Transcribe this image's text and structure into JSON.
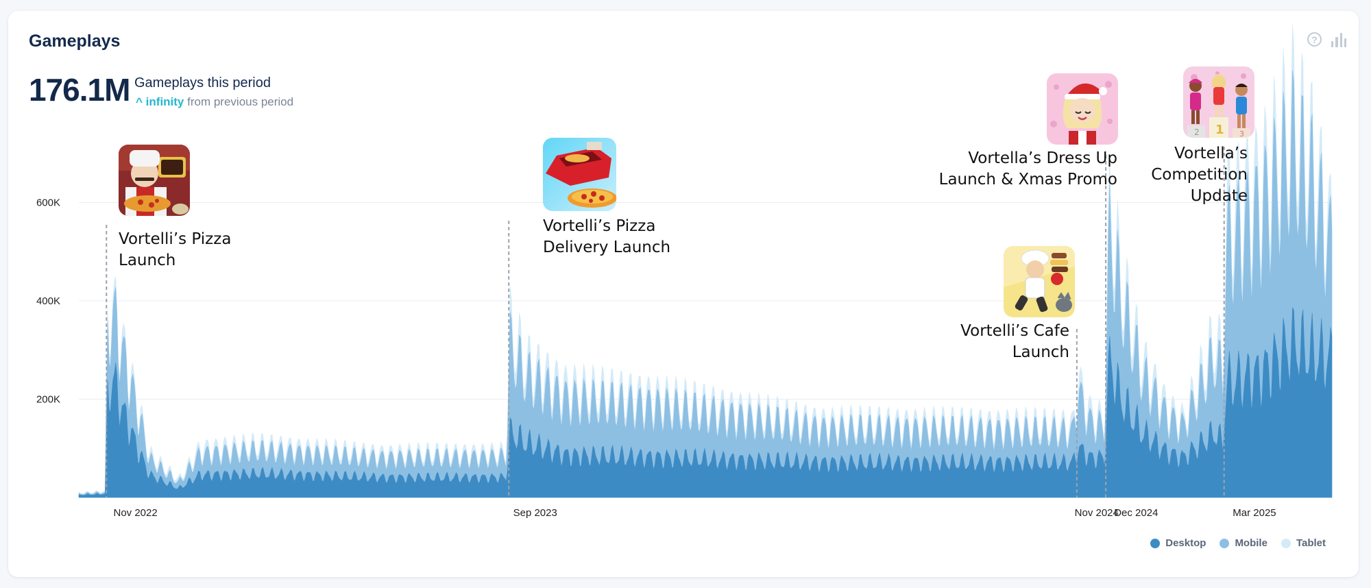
{
  "header": {
    "title": "Gameplays",
    "total": "176.1M",
    "period_label": "Gameplays this period",
    "change_arrow": "^",
    "change_value": "infinity",
    "change_suffix": "from previous period",
    "help_icon": "question-circle-icon",
    "chart_icon": "bar-chart-icon"
  },
  "colors": {
    "desktop": "#3d8bc4",
    "mobile": "#8dbfe3",
    "tablet": "#d3eaf8",
    "grid": "#e9edf3",
    "axis_text": "#222222",
    "annotation_line": "#9aa3ad"
  },
  "annotations": [
    {
      "id": "pizza",
      "label_lines": [
        "Vortelli’s Pizza",
        "Launch"
      ],
      "date": "2022-11-05"
    },
    {
      "id": "delivery",
      "label_lines": [
        "Vortelli’s Pizza",
        "Delivery Launch"
      ],
      "date": "2023-09-07"
    },
    {
      "id": "cafe",
      "label_lines": [
        "Vortelli’s Cafe",
        "Launch"
      ],
      "date": "2024-11-12"
    },
    {
      "id": "dressup",
      "label_lines": [
        "Vortella’s Dress Up",
        "Launch & Xmas Promo"
      ],
      "date": "2024-12-04"
    },
    {
      "id": "competition",
      "label_lines": [
        "Vortella’s",
        "Competition",
        "Update"
      ],
      "date": "2025-03-04"
    }
  ],
  "chart_data": {
    "type": "area",
    "stacked": true,
    "x_axis": {
      "type": "date",
      "range": [
        "2022-10-15",
        "2025-05-25"
      ],
      "ticks": [
        {
          "label": "Nov 2022",
          "date": "2022-11-01"
        },
        {
          "label": "Sep 2023",
          "date": "2023-09-01"
        },
        {
          "label": "Nov 2024",
          "date": "2024-11-01"
        },
        {
          "label": "Dec 2024",
          "date": "2024-12-01"
        },
        {
          "label": "Mar 2025",
          "date": "2025-03-01"
        }
      ]
    },
    "y_axis": {
      "range": [
        0,
        800000
      ],
      "ticks": [
        {
          "label": "200K",
          "value": 200000
        },
        {
          "label": "400K",
          "value": 400000
        },
        {
          "label": "600K",
          "value": 600000
        }
      ]
    },
    "grid": true,
    "legend_position": "bottom-right",
    "series": [
      {
        "name": "Desktop",
        "color": "#3d8bc4"
      },
      {
        "name": "Mobile",
        "color": "#8dbfe3"
      },
      {
        "name": "Tablet",
        "color": "#d3eaf8"
      }
    ],
    "points": [
      {
        "date": "2022-10-15",
        "desktop": 5000,
        "mobile": 2500,
        "tablet": 1500
      },
      {
        "date": "2022-11-04",
        "desktop": 7000,
        "mobile": 3000,
        "tablet": 2000
      },
      {
        "date": "2022-11-06",
        "desktop": 210000,
        "mobile": 120000,
        "tablet": 30000
      },
      {
        "date": "2022-11-10",
        "desktop": 240000,
        "mobile": 130000,
        "tablet": 20000
      },
      {
        "date": "2022-11-18",
        "desktop": 170000,
        "mobile": 110000,
        "tablet": 20000
      },
      {
        "date": "2022-11-30",
        "desktop": 90000,
        "mobile": 70000,
        "tablet": 15000
      },
      {
        "date": "2022-12-08",
        "desktop": 45000,
        "mobile": 30000,
        "tablet": 10000
      },
      {
        "date": "2022-12-30",
        "desktop": 18000,
        "mobile": 12000,
        "tablet": 6000
      },
      {
        "date": "2023-01-15",
        "desktop": 45000,
        "mobile": 40000,
        "tablet": 12000
      },
      {
        "date": "2023-03-01",
        "desktop": 48000,
        "mobile": 45000,
        "tablet": 12000
      },
      {
        "date": "2023-06-01",
        "desktop": 40000,
        "mobile": 38000,
        "tablet": 10000
      },
      {
        "date": "2023-09-05",
        "desktop": 40000,
        "mobile": 40000,
        "tablet": 10000
      },
      {
        "date": "2023-09-08",
        "desktop": 130000,
        "mobile": 170000,
        "tablet": 40000
      },
      {
        "date": "2023-09-20",
        "desktop": 110000,
        "mobile": 130000,
        "tablet": 30000
      },
      {
        "date": "2023-10-20",
        "desktop": 85000,
        "mobile": 110000,
        "tablet": 25000
      },
      {
        "date": "2024-01-01",
        "desktop": 80000,
        "mobile": 100000,
        "tablet": 20000
      },
      {
        "date": "2024-05-01",
        "desktop": 70000,
        "mobile": 65000,
        "tablet": 15000
      },
      {
        "date": "2024-11-09",
        "desktop": 70000,
        "mobile": 60000,
        "tablet": 15000
      },
      {
        "date": "2024-11-13",
        "desktop": 100000,
        "mobile": 110000,
        "tablet": 25000
      },
      {
        "date": "2024-11-22",
        "desktop": 80000,
        "mobile": 70000,
        "tablet": 20000
      },
      {
        "date": "2024-12-03",
        "desktop": 80000,
        "mobile": 60000,
        "tablet": 15000
      },
      {
        "date": "2024-12-07",
        "desktop": 280000,
        "mobile": 250000,
        "tablet": 60000
      },
      {
        "date": "2024-12-15",
        "desktop": 200000,
        "mobile": 200000,
        "tablet": 40000
      },
      {
        "date": "2025-01-01",
        "desktop": 130000,
        "mobile": 110000,
        "tablet": 30000
      },
      {
        "date": "2025-01-20",
        "desktop": 90000,
        "mobile": 70000,
        "tablet": 20000
      },
      {
        "date": "2025-02-01",
        "desktop": 80000,
        "mobile": 60000,
        "tablet": 15000
      },
      {
        "date": "2025-02-25",
        "desktop": 130000,
        "mobile": 150000,
        "tablet": 40000
      },
      {
        "date": "2025-03-03",
        "desktop": 110000,
        "mobile": 130000,
        "tablet": 40000
      },
      {
        "date": "2025-03-06",
        "desktop": 230000,
        "mobile": 270000,
        "tablet": 70000
      },
      {
        "date": "2025-04-01",
        "desktop": 250000,
        "mobile": 320000,
        "tablet": 60000
      },
      {
        "date": "2025-04-25",
        "desktop": 310000,
        "mobile": 380000,
        "tablet": 70000
      },
      {
        "date": "2025-05-10",
        "desktop": 290000,
        "mobile": 330000,
        "tablet": 60000
      },
      {
        "date": "2025-05-25",
        "desktop": 280000,
        "mobile": 210000,
        "tablet": 40000
      }
    ]
  }
}
